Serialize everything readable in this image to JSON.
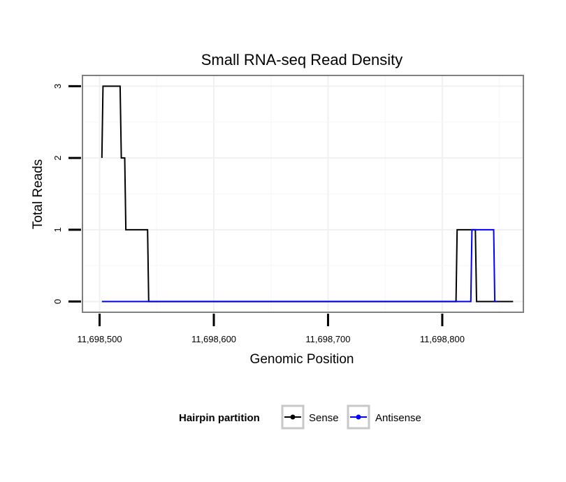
{
  "chart_data": {
    "type": "line",
    "title": "Small RNA-seq Read Density",
    "xlabel": "Genomic Position",
    "ylabel": "Total Reads",
    "xlim": [
      11698485,
      11698871
    ],
    "ylim": [
      -0.15,
      3.15
    ],
    "x_ticks": [
      11698500,
      11698600,
      11698700,
      11698800
    ],
    "x_tick_labels": [
      "11,698,500",
      "11,698,600",
      "11,698,700",
      "11,698,800"
    ],
    "y_ticks": [
      0,
      1,
      2,
      3
    ],
    "y_tick_labels": [
      "0",
      "1",
      "2",
      "3"
    ],
    "grid": true,
    "legend": {
      "position": "bottom",
      "title": "Hairpin partition"
    },
    "series": [
      {
        "name": "Sense",
        "color": "#000000",
        "points": [
          [
            11698502,
            2
          ],
          [
            11698503,
            3
          ],
          [
            11698518,
            3
          ],
          [
            11698519,
            2
          ],
          [
            11698522,
            2
          ],
          [
            11698523,
            1
          ],
          [
            11698542,
            1
          ],
          [
            11698543,
            0
          ],
          [
            11698812,
            0
          ],
          [
            11698813,
            1
          ],
          [
            11698829,
            1
          ],
          [
            11698830,
            0
          ],
          [
            11698862,
            0
          ]
        ]
      },
      {
        "name": "Antisense",
        "color": "#0000ff",
        "points": [
          [
            11698502,
            0
          ],
          [
            11698825,
            0
          ],
          [
            11698826,
            1
          ],
          [
            11698845,
            1
          ],
          [
            11698846,
            0
          ],
          [
            11698848,
            0
          ]
        ]
      }
    ]
  }
}
